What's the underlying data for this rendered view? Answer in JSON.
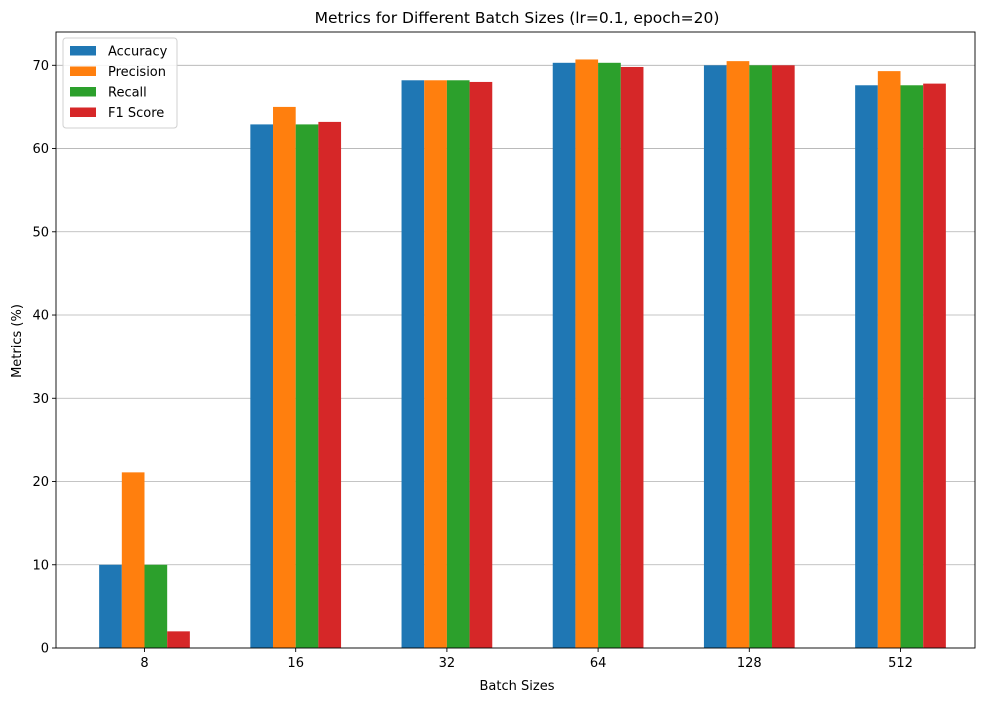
{
  "chart_data": {
    "type": "bar",
    "title": "Metrics for Different Batch Sizes (lr=0.1, epoch=20)",
    "xlabel": "Batch Sizes",
    "ylabel": "Metrics (%)",
    "categories": [
      "8",
      "16",
      "32",
      "64",
      "128",
      "512"
    ],
    "ylim": [
      0,
      74
    ],
    "yticks": [
      0,
      10,
      20,
      30,
      40,
      50,
      60,
      70
    ],
    "grid": "y",
    "legend_position": "top-left",
    "series": [
      {
        "name": "Accuracy",
        "color": "#1f77b4",
        "values": [
          10.0,
          62.9,
          68.2,
          70.3,
          70.0,
          67.6
        ]
      },
      {
        "name": "Precision",
        "color": "#ff7f0e",
        "values": [
          21.1,
          65.0,
          68.2,
          70.7,
          70.5,
          69.3
        ]
      },
      {
        "name": "Recall",
        "color": "#2ca02c",
        "values": [
          10.0,
          62.9,
          68.2,
          70.3,
          70.0,
          67.6
        ]
      },
      {
        "name": "F1 Score",
        "color": "#d62728",
        "values": [
          2.0,
          63.2,
          68.0,
          69.8,
          70.0,
          67.8
        ]
      }
    ]
  }
}
